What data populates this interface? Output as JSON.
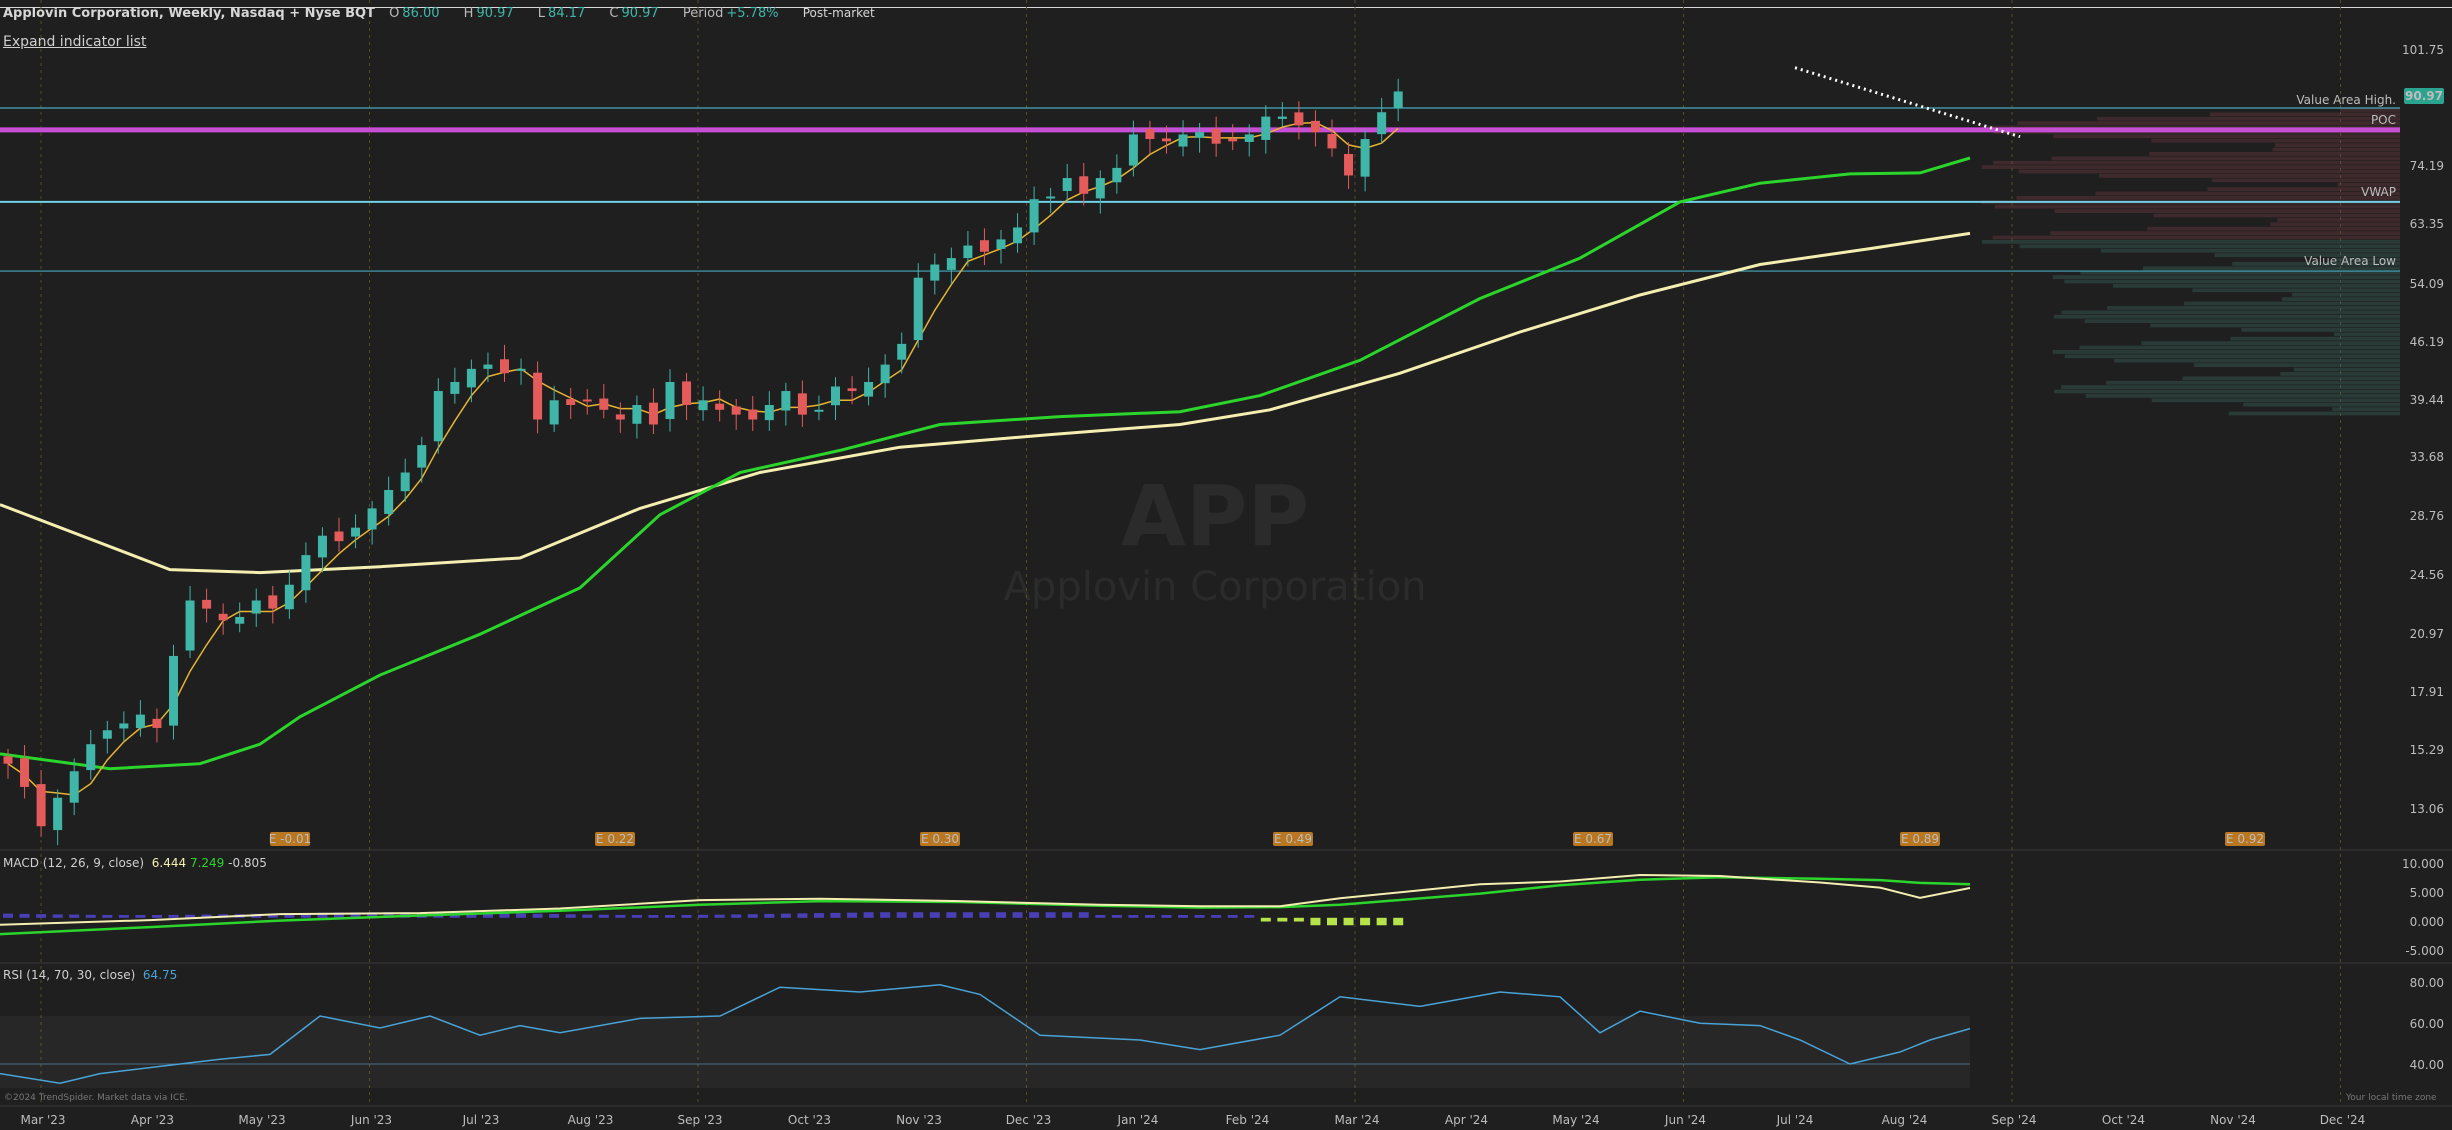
{
  "header": {
    "title": "Applovin Corporation, Weekly, Nasdaq + Nyse BQT",
    "open_label": "O",
    "open": "86.00",
    "high_label": "H",
    "high": "90.97",
    "low_label": "L",
    "low": "84.17",
    "close_label": "C",
    "close": "90.97",
    "period_label": "Period",
    "period": "+5.78%",
    "session": "Post-market"
  },
  "expand_link": "Expand indicator list",
  "watermark": {
    "symbol": "APP",
    "name": "Applovin Corporation"
  },
  "price_axis": [
    "101.75",
    "74.19",
    "63.35",
    "54.09",
    "46.19",
    "39.44",
    "33.68",
    "28.76",
    "24.56",
    "20.97",
    "17.91",
    "15.29",
    "13.06"
  ],
  "last_price_badge": "90.97",
  "overlay_labels": {
    "value_area_high": "Value Area High.",
    "poc": "POC",
    "vwap": "VWAP",
    "value_area_low": "Value Area Low"
  },
  "earnings": [
    "E -0.01",
    "E 0.22",
    "E 0.30",
    "E 0.49",
    "E 0.67",
    "E 0.89",
    "E 0.92"
  ],
  "macd": {
    "label": "MACD (12, 26, 9, close)",
    "macd": "6.444",
    "signal": "7.249",
    "hist": "-0.805",
    "axis": [
      "10.000",
      "5.000",
      "0.000",
      "-5.000"
    ]
  },
  "rsi": {
    "label": "RSI (14, 70, 30, close)",
    "value": "64.75",
    "axis": [
      "80.00",
      "60.00",
      "40.00"
    ]
  },
  "time_axis": [
    "Mar '23",
    "Apr '23",
    "May '23",
    "Jun '23",
    "Jul '23",
    "Aug '23",
    "Sep '23",
    "Oct '23",
    "Nov '23",
    "Dec '23",
    "Jan '24",
    "Feb '24",
    "Mar '24",
    "Apr '24",
    "May '24",
    "Jun '24",
    "Jul '24",
    "Aug '24",
    "Sep '24",
    "Oct '24",
    "Nov '24",
    "Dec '24"
  ],
  "copyright": "©2024 TrendSpider. Market data via ICE.",
  "timezone": "Your local time zone",
  "colors": {
    "up": "#3fb6a8",
    "down": "#e35b5b",
    "sma_fast": "#e6b432",
    "sma_mid": "#2bd52b",
    "sma_slow": "#f4efb0",
    "poc": "#c64fd6",
    "vwap": "#6fd0e6",
    "macd_hist_pos": "#4b3fb8",
    "macd_hist_neg": "#b6e34a",
    "rsi_line": "#4aa3d6"
  },
  "chart_data": {
    "type": "candlestick",
    "interval": "weekly",
    "closes": [
      14.8,
      13.9,
      12.5,
      13.5,
      14.5,
      15.6,
      16.2,
      16.5,
      16.9,
      16.3,
      19.8,
      23.0,
      22.5,
      21.8,
      22.0,
      23.0,
      22.5,
      24.0,
      26.0,
      27.4,
      27.0,
      28.0,
      29.5,
      31.0,
      32.5,
      35.0,
      40.5,
      41.5,
      43.0,
      43.5,
      42.5,
      43.0,
      37.5,
      39.5,
      39.0,
      39.5,
      38.5,
      37.5,
      39.0,
      37.0,
      41.5,
      39.0,
      39.5,
      38.5,
      38.0,
      37.5,
      39.0,
      40.5,
      38.0,
      38.5,
      41.0,
      40.5,
      41.5,
      43.5,
      46.0,
      55.0,
      57.0,
      58.0,
      60.0,
      59.0,
      61.0,
      63.0,
      68.0,
      68.5,
      72.0,
      69.0,
      72.0,
      74.0,
      81.0,
      80.0,
      79.5,
      81.0,
      81.5,
      79.0,
      79.5,
      81.0,
      85.0,
      85.0,
      83.0,
      81.5,
      78.0,
      72.5,
      80.0,
      86.0,
      90.97
    ],
    "sma_fast_last": 78.5,
    "sma_mid_last": 76.0,
    "sma_slow_last": 62.0,
    "volume_profile": {
      "value_area_high": 87.0,
      "poc": 82.0,
      "vwap": 67.5,
      "value_area_low": 56.0
    },
    "macd": {
      "macd": 6.444,
      "signal": 7.249,
      "histogram": -0.805
    },
    "rsi": {
      "value": 64.75,
      "overbought": 70,
      "oversold": 30
    }
  }
}
